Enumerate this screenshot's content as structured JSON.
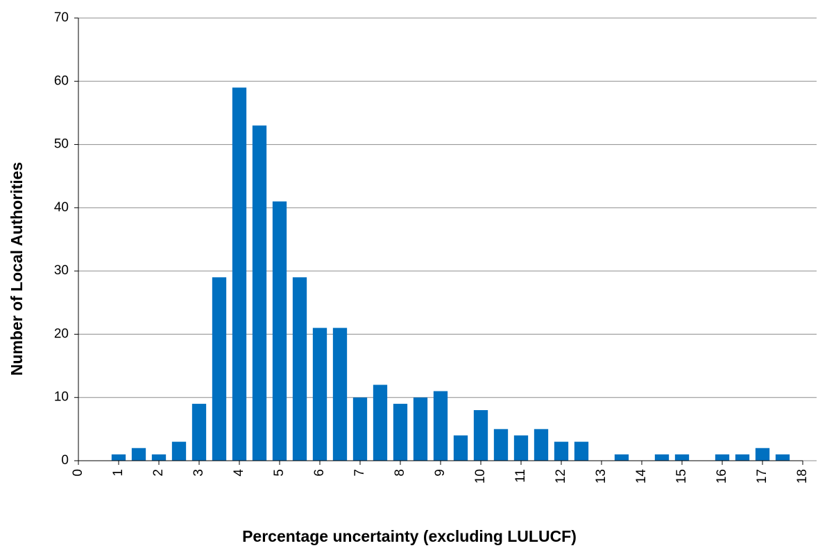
{
  "chart_data": {
    "type": "bar",
    "x_label": "Percentage uncertainty (excluding LULUCF)",
    "y_label": "Number of Local Authorities",
    "x": [
      1,
      1.5,
      2,
      2.5,
      3,
      3.5,
      4,
      4.5,
      5,
      5.5,
      6,
      6.5,
      7,
      7.5,
      8,
      8.5,
      9,
      9.5,
      10,
      10.5,
      11,
      11.5,
      12,
      12.5,
      13,
      13.5,
      14,
      14.5,
      15,
      15.5,
      16,
      16.5,
      17,
      17.5
    ],
    "values": [
      1,
      2,
      1,
      3,
      9,
      29,
      59,
      53,
      41,
      29,
      21,
      21,
      10,
      12,
      9,
      10,
      11,
      4,
      8,
      5,
      4,
      5,
      3,
      3,
      0,
      1,
      0,
      1,
      1,
      0,
      1,
      1,
      2,
      1
    ],
    "color": "#0070c0",
    "xlim": [
      0,
      18
    ],
    "xticks": [
      0,
      1,
      2,
      3,
      4,
      5,
      6,
      7,
      8,
      9,
      10,
      11,
      12,
      13,
      14,
      15,
      16,
      17,
      18
    ],
    "ylim": [
      0,
      70
    ],
    "yticks": [
      0,
      10,
      20,
      30,
      40,
      50,
      60,
      70
    ],
    "grid": true
  }
}
